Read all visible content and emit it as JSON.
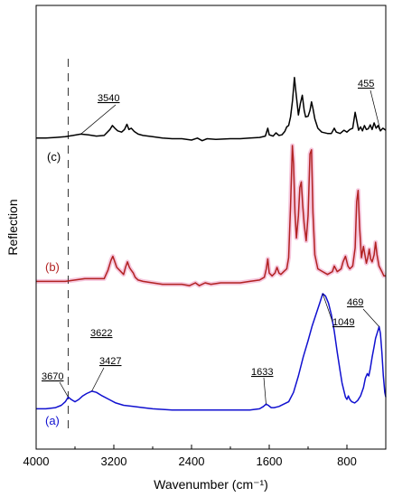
{
  "chart_data": {
    "type": "line",
    "title": "",
    "xlabel": "Wavenumber (cm⁻¹)",
    "ylabel": "Reflection",
    "x_reversed": true,
    "xlim": [
      4000,
      400
    ],
    "xticks": [
      4000,
      3200,
      2400,
      1600,
      800
    ],
    "grid": false,
    "dashed_marker_x": 3670,
    "series": [
      {
        "name": "(c)",
        "color": "#000000",
        "points": [
          [
            4000,
            0.03
          ],
          [
            3900,
            0.03
          ],
          [
            3800,
            0.04
          ],
          [
            3700,
            0.05
          ],
          [
            3620,
            0.07
          ],
          [
            3540,
            0.09
          ],
          [
            3460,
            0.08
          ],
          [
            3380,
            0.06
          ],
          [
            3300,
            0.07
          ],
          [
            3240,
            0.16
          ],
          [
            3215,
            0.22
          ],
          [
            3190,
            0.18
          ],
          [
            3160,
            0.14
          ],
          [
            3120,
            0.12
          ],
          [
            3090,
            0.16
          ],
          [
            3065,
            0.24
          ],
          [
            3045,
            0.16
          ],
          [
            3020,
            0.18
          ],
          [
            2990,
            0.13
          ],
          [
            2950,
            0.09
          ],
          [
            2900,
            0.07
          ],
          [
            2800,
            0.05
          ],
          [
            2700,
            0.03
          ],
          [
            2600,
            0.02
          ],
          [
            2500,
            0.02
          ],
          [
            2400,
            0.0
          ],
          [
            2340,
            0.03
          ],
          [
            2290,
            -0.01
          ],
          [
            2240,
            0.02
          ],
          [
            2150,
            0.01
          ],
          [
            2000,
            0.02
          ],
          [
            1900,
            0.02
          ],
          [
            1800,
            0.03
          ],
          [
            1700,
            0.04
          ],
          [
            1640,
            0.06
          ],
          [
            1615,
            0.18
          ],
          [
            1600,
            0.08
          ],
          [
            1560,
            0.06
          ],
          [
            1530,
            0.11
          ],
          [
            1500,
            0.07
          ],
          [
            1470,
            0.08
          ],
          [
            1440,
            0.13
          ],
          [
            1420,
            0.2
          ],
          [
            1400,
            0.22
          ],
          [
            1380,
            0.35
          ],
          [
            1360,
            0.6
          ],
          [
            1340,
            0.95
          ],
          [
            1325,
            0.72
          ],
          [
            1300,
            0.38
          ],
          [
            1280,
            0.55
          ],
          [
            1260,
            0.68
          ],
          [
            1240,
            0.45
          ],
          [
            1225,
            0.35
          ],
          [
            1200,
            0.36
          ],
          [
            1180,
            0.45
          ],
          [
            1165,
            0.58
          ],
          [
            1150,
            0.48
          ],
          [
            1130,
            0.32
          ],
          [
            1100,
            0.18
          ],
          [
            1060,
            0.12
          ],
          [
            1000,
            0.1
          ],
          [
            960,
            0.1
          ],
          [
            930,
            0.18
          ],
          [
            910,
            0.12
          ],
          [
            870,
            0.1
          ],
          [
            830,
            0.15
          ],
          [
            800,
            0.12
          ],
          [
            770,
            0.16
          ],
          [
            740,
            0.18
          ],
          [
            715,
            0.42
          ],
          [
            700,
            0.3
          ],
          [
            680,
            0.15
          ],
          [
            660,
            0.2
          ],
          [
            640,
            0.14
          ],
          [
            620,
            0.22
          ],
          [
            600,
            0.16
          ],
          [
            580,
            0.17
          ],
          [
            560,
            0.23
          ],
          [
            540,
            0.16
          ],
          [
            520,
            0.26
          ],
          [
            500,
            0.18
          ],
          [
            480,
            0.22
          ],
          [
            455,
            0.14
          ],
          [
            430,
            0.18
          ],
          [
            400,
            0.15
          ]
        ]
      },
      {
        "name": "(b)",
        "color": "#b22222",
        "points": [
          [
            4000,
            0.01
          ],
          [
            3900,
            0.01
          ],
          [
            3800,
            0.01
          ],
          [
            3700,
            0.01
          ],
          [
            3600,
            0.02
          ],
          [
            3500,
            0.03
          ],
          [
            3400,
            0.03
          ],
          [
            3300,
            0.03
          ],
          [
            3260,
            0.09
          ],
          [
            3230,
            0.16
          ],
          [
            3210,
            0.19
          ],
          [
            3190,
            0.15
          ],
          [
            3170,
            0.11
          ],
          [
            3140,
            0.09
          ],
          [
            3100,
            0.06
          ],
          [
            3080,
            0.11
          ],
          [
            3060,
            0.15
          ],
          [
            3040,
            0.11
          ],
          [
            3020,
            0.09
          ],
          [
            3000,
            0.07
          ],
          [
            2980,
            0.04
          ],
          [
            2950,
            0.02
          ],
          [
            2900,
            0.01
          ],
          [
            2800,
            0.0
          ],
          [
            2700,
            -0.01
          ],
          [
            2600,
            -0.01
          ],
          [
            2500,
            -0.01
          ],
          [
            2420,
            -0.02
          ],
          [
            2360,
            0.0
          ],
          [
            2320,
            -0.02
          ],
          [
            2260,
            0.0
          ],
          [
            2200,
            -0.01
          ],
          [
            2100,
            0.0
          ],
          [
            2000,
            0.0
          ],
          [
            1900,
            0.0
          ],
          [
            1800,
            0.01
          ],
          [
            1700,
            0.02
          ],
          [
            1650,
            0.04
          ],
          [
            1630,
            0.1
          ],
          [
            1615,
            0.17
          ],
          [
            1600,
            0.07
          ],
          [
            1570,
            0.05
          ],
          [
            1540,
            0.07
          ],
          [
            1520,
            0.11
          ],
          [
            1500,
            0.07
          ],
          [
            1480,
            0.06
          ],
          [
            1450,
            0.08
          ],
          [
            1420,
            0.1
          ],
          [
            1400,
            0.18
          ],
          [
            1380,
            0.55
          ],
          [
            1362,
            0.98
          ],
          [
            1350,
            0.85
          ],
          [
            1335,
            0.5
          ],
          [
            1320,
            0.32
          ],
          [
            1300,
            0.48
          ],
          [
            1285,
            0.68
          ],
          [
            1270,
            0.72
          ],
          [
            1255,
            0.55
          ],
          [
            1240,
            0.42
          ],
          [
            1220,
            0.3
          ],
          [
            1200,
            0.48
          ],
          [
            1180,
            0.92
          ],
          [
            1165,
            0.95
          ],
          [
            1150,
            0.5
          ],
          [
            1130,
            0.2
          ],
          [
            1100,
            0.1
          ],
          [
            1050,
            0.08
          ],
          [
            1000,
            0.06
          ],
          [
            950,
            0.08
          ],
          [
            930,
            0.12
          ],
          [
            900,
            0.08
          ],
          [
            880,
            0.09
          ],
          [
            860,
            0.1
          ],
          [
            840,
            0.15
          ],
          [
            815,
            0.19
          ],
          [
            790,
            0.12
          ],
          [
            770,
            0.1
          ],
          [
            740,
            0.12
          ],
          [
            715,
            0.25
          ],
          [
            700,
            0.58
          ],
          [
            685,
            0.66
          ],
          [
            670,
            0.4
          ],
          [
            650,
            0.18
          ],
          [
            630,
            0.26
          ],
          [
            615,
            0.2
          ],
          [
            600,
            0.14
          ],
          [
            585,
            0.18
          ],
          [
            570,
            0.24
          ],
          [
            555,
            0.17
          ],
          [
            540,
            0.15
          ],
          [
            520,
            0.2
          ],
          [
            505,
            0.29
          ],
          [
            490,
            0.2
          ],
          [
            470,
            0.12
          ],
          [
            440,
            0.08
          ],
          [
            420,
            0.05
          ],
          [
            400,
            0.05
          ]
        ]
      },
      {
        "name": "(a)",
        "color": "#1010d0",
        "points": [
          [
            4000,
            0.02
          ],
          [
            3900,
            0.02
          ],
          [
            3800,
            0.03
          ],
          [
            3740,
            0.05
          ],
          [
            3700,
            0.08
          ],
          [
            3670,
            0.12
          ],
          [
            3640,
            0.1
          ],
          [
            3600,
            0.08
          ],
          [
            3560,
            0.1
          ],
          [
            3520,
            0.13
          ],
          [
            3480,
            0.15
          ],
          [
            3427,
            0.17
          ],
          [
            3380,
            0.16
          ],
          [
            3320,
            0.13
          ],
          [
            3250,
            0.1
          ],
          [
            3180,
            0.07
          ],
          [
            3100,
            0.05
          ],
          [
            3000,
            0.04
          ],
          [
            2900,
            0.03
          ],
          [
            2800,
            0.02
          ],
          [
            2600,
            0.01
          ],
          [
            2400,
            0.01
          ],
          [
            2200,
            0.01
          ],
          [
            2000,
            0.01
          ],
          [
            1800,
            0.01
          ],
          [
            1700,
            0.02
          ],
          [
            1660,
            0.04
          ],
          [
            1633,
            0.06
          ],
          [
            1610,
            0.05
          ],
          [
            1580,
            0.03
          ],
          [
            1550,
            0.03
          ],
          [
            1500,
            0.04
          ],
          [
            1450,
            0.06
          ],
          [
            1400,
            0.08
          ],
          [
            1350,
            0.16
          ],
          [
            1300,
            0.3
          ],
          [
            1250,
            0.46
          ],
          [
            1200,
            0.6
          ],
          [
            1160,
            0.72
          ],
          [
            1120,
            0.82
          ],
          [
            1080,
            0.92
          ],
          [
            1049,
            1.0
          ],
          [
            1020,
            0.98
          ],
          [
            990,
            0.92
          ],
          [
            960,
            0.82
          ],
          [
            930,
            0.68
          ],
          [
            900,
            0.5
          ],
          [
            870,
            0.34
          ],
          [
            850,
            0.24
          ],
          [
            830,
            0.17
          ],
          [
            815,
            0.12
          ],
          [
            800,
            0.1
          ],
          [
            785,
            0.13
          ],
          [
            770,
            0.1
          ],
          [
            750,
            0.08
          ],
          [
            720,
            0.07
          ],
          [
            690,
            0.09
          ],
          [
            660,
            0.13
          ],
          [
            630,
            0.2
          ],
          [
            610,
            0.28
          ],
          [
            590,
            0.32
          ],
          [
            575,
            0.3
          ],
          [
            560,
            0.36
          ],
          [
            540,
            0.46
          ],
          [
            520,
            0.55
          ],
          [
            505,
            0.62
          ],
          [
            490,
            0.66
          ],
          [
            475,
            0.7
          ],
          [
            469,
            0.72
          ],
          [
            455,
            0.66
          ],
          [
            440,
            0.5
          ],
          [
            425,
            0.3
          ],
          [
            410,
            0.16
          ],
          [
            400,
            0.12
          ]
        ]
      }
    ],
    "annotations": [
      {
        "text": "3540",
        "series": 0,
        "x": 3540
      },
      {
        "text": "455",
        "series": 0,
        "x": 455
      },
      {
        "text": "3622",
        "series": 2,
        "x": 3622,
        "floating": true
      },
      {
        "text": "3670",
        "series": 2,
        "x": 3670
      },
      {
        "text": "3427",
        "series": 2,
        "x": 3427
      },
      {
        "text": "1633",
        "series": 2,
        "x": 1633
      },
      {
        "text": "1049",
        "series": 2,
        "x": 1049
      },
      {
        "text": "469",
        "series": 2,
        "x": 469
      }
    ]
  }
}
